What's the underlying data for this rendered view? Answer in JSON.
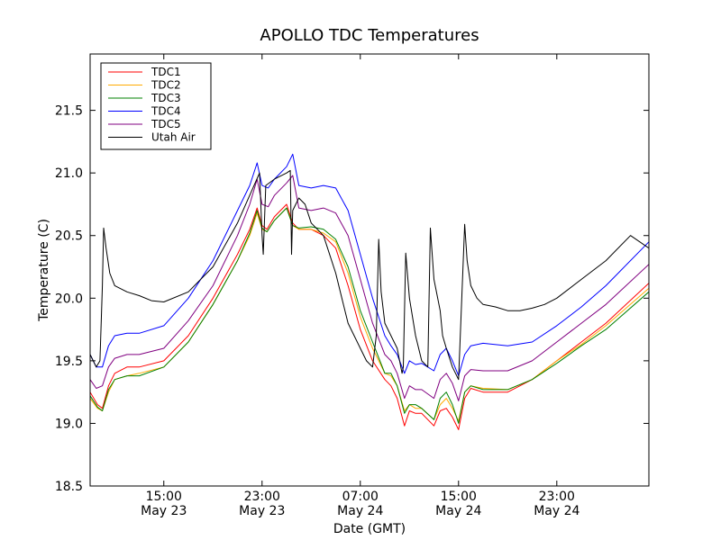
{
  "chart_data": {
    "type": "line",
    "title": "APOLLO TDC Temperatures",
    "xlabel": "Date (GMT)",
    "ylabel": "Temperature (C)",
    "x_unit": "hours since May 23 09:00 GMT",
    "xlim": [
      0,
      45.5
    ],
    "ylim": [
      18.5,
      21.95
    ],
    "yticks": [
      18.5,
      19.0,
      19.5,
      20.0,
      20.5,
      21.0,
      21.5
    ],
    "ytick_labels": [
      "18.5",
      "19.0",
      "19.5",
      "20.0",
      "20.5",
      "21.0",
      "21.5"
    ],
    "xticks": [
      {
        "x": 6,
        "time": "15:00",
        "date": "May 23"
      },
      {
        "x": 14,
        "time": "23:00",
        "date": "May 23"
      },
      {
        "x": 22,
        "time": "07:00",
        "date": "May 24"
      },
      {
        "x": 30,
        "time": "15:00",
        "date": "May 24"
      },
      {
        "x": 38,
        "time": "23:00",
        "date": "May 24"
      }
    ],
    "legend_position": "top-left",
    "series": [
      {
        "name": "TDC1",
        "color": "#ff0000",
        "x": [
          0,
          0.6,
          1,
          1.5,
          2,
          3,
          4,
          6,
          8,
          10,
          12,
          13,
          13.6,
          14,
          14.4,
          15,
          16,
          16.5,
          17,
          18,
          19,
          20,
          21,
          22,
          23,
          24,
          24.5,
          25,
          25.6,
          26,
          26.5,
          27,
          28,
          28.5,
          29,
          29.5,
          30,
          30.5,
          31,
          32,
          34,
          36,
          38,
          40,
          42,
          45.5
        ],
        "values": [
          19.25,
          19.15,
          19.12,
          19.3,
          19.4,
          19.45,
          19.45,
          19.5,
          19.7,
          20.0,
          20.35,
          20.55,
          20.72,
          20.58,
          20.55,
          20.65,
          20.75,
          20.6,
          20.55,
          20.55,
          20.5,
          20.4,
          20.1,
          19.75,
          19.5,
          19.35,
          19.3,
          19.2,
          18.98,
          19.1,
          19.08,
          19.08,
          18.98,
          19.1,
          19.12,
          19.05,
          18.95,
          19.2,
          19.28,
          19.25,
          19.25,
          19.35,
          19.5,
          19.65,
          19.8,
          20.12
        ]
      },
      {
        "name": "TDC2",
        "color": "#ffaa00",
        "x": [
          0,
          0.6,
          1,
          1.5,
          2,
          3,
          4,
          6,
          8,
          10,
          12,
          13,
          13.6,
          14,
          14.4,
          15,
          16,
          16.5,
          17,
          18,
          19,
          20,
          21,
          22,
          23,
          24,
          24.5,
          25,
          25.6,
          26,
          26.5,
          27,
          28,
          28.5,
          29,
          29.5,
          30,
          30.5,
          31,
          32,
          34,
          36,
          38,
          40,
          42,
          45.5
        ],
        "values": [
          19.2,
          19.12,
          19.1,
          19.25,
          19.35,
          19.38,
          19.4,
          19.45,
          19.65,
          19.95,
          20.3,
          20.5,
          20.68,
          20.55,
          20.53,
          20.62,
          20.72,
          20.58,
          20.55,
          20.55,
          20.52,
          20.45,
          20.2,
          19.85,
          19.6,
          19.4,
          19.38,
          19.3,
          19.1,
          19.15,
          19.12,
          19.12,
          19.03,
          19.15,
          19.2,
          19.12,
          19.02,
          19.25,
          19.3,
          19.28,
          19.27,
          19.35,
          19.5,
          19.63,
          19.78,
          20.08
        ]
      },
      {
        "name": "TDC3",
        "color": "#008000",
        "x": [
          0,
          0.6,
          1,
          1.5,
          2,
          3,
          4,
          6,
          8,
          10,
          12,
          13,
          13.6,
          14,
          14.4,
          15,
          16,
          16.5,
          17,
          18,
          19,
          20,
          21,
          22,
          23,
          24,
          24.5,
          25,
          25.6,
          26,
          26.5,
          27,
          28,
          28.5,
          29,
          29.5,
          30,
          30.5,
          31,
          32,
          34,
          36,
          38,
          40,
          42,
          45.5
        ],
        "values": [
          19.22,
          19.13,
          19.1,
          19.27,
          19.35,
          19.38,
          19.38,
          19.45,
          19.65,
          19.95,
          20.3,
          20.52,
          20.7,
          20.56,
          20.53,
          20.62,
          20.72,
          20.58,
          20.56,
          20.57,
          20.55,
          20.47,
          20.25,
          19.9,
          19.65,
          19.4,
          19.4,
          19.3,
          19.08,
          19.15,
          19.15,
          19.12,
          19.03,
          19.2,
          19.25,
          19.15,
          19.0,
          19.25,
          19.3,
          19.27,
          19.27,
          19.35,
          19.48,
          19.62,
          19.75,
          20.05
        ]
      },
      {
        "name": "TDC4",
        "color": "#0000ff",
        "x": [
          0,
          0.5,
          1,
          1.5,
          2,
          3,
          4,
          6,
          8,
          10,
          12,
          13,
          13.6,
          14,
          14.5,
          15,
          16,
          16.5,
          17,
          18,
          19,
          20,
          21,
          22,
          23,
          24,
          24.5,
          25,
          25.6,
          26,
          26.5,
          27,
          28,
          28.5,
          29,
          29.5,
          30,
          30.5,
          31,
          32,
          34,
          36,
          38,
          40,
          42,
          45.5
        ],
        "values": [
          19.55,
          19.45,
          19.45,
          19.62,
          19.7,
          19.72,
          19.72,
          19.78,
          20.0,
          20.3,
          20.7,
          20.9,
          21.08,
          20.9,
          20.88,
          20.95,
          21.05,
          21.15,
          20.9,
          20.88,
          20.9,
          20.88,
          20.7,
          20.35,
          20.0,
          19.7,
          19.62,
          19.55,
          19.4,
          19.5,
          19.47,
          19.48,
          19.42,
          19.55,
          19.6,
          19.5,
          19.38,
          19.55,
          19.62,
          19.64,
          19.62,
          19.65,
          19.78,
          19.93,
          20.1,
          20.45
        ]
      },
      {
        "name": "TDC5",
        "color": "#800080",
        "x": [
          0,
          0.5,
          1,
          1.5,
          2,
          3,
          4,
          6,
          8,
          10,
          12,
          13,
          13.6,
          14,
          14.5,
          15,
          16,
          16.5,
          17,
          18,
          19,
          20,
          21,
          22,
          23,
          24,
          24.5,
          25,
          25.6,
          26,
          26.5,
          27,
          28,
          28.5,
          29,
          29.5,
          30,
          30.5,
          31,
          32,
          34,
          36,
          38,
          40,
          42,
          45.5
        ],
        "values": [
          19.35,
          19.28,
          19.3,
          19.45,
          19.52,
          19.55,
          19.55,
          19.6,
          19.82,
          20.1,
          20.5,
          20.75,
          20.95,
          20.75,
          20.73,
          20.82,
          20.92,
          20.98,
          20.72,
          20.7,
          20.72,
          20.68,
          20.5,
          20.15,
          19.8,
          19.55,
          19.5,
          19.4,
          19.2,
          19.3,
          19.27,
          19.27,
          19.2,
          19.35,
          19.4,
          19.32,
          19.18,
          19.38,
          19.43,
          19.42,
          19.42,
          19.5,
          19.65,
          19.8,
          19.95,
          20.27
        ]
      },
      {
        "name": "Utah Air",
        "color": "#000000",
        "x": [
          0,
          0.5,
          0.8,
          1.0,
          1.1,
          1.3,
          1.6,
          2,
          3,
          4,
          5,
          6,
          8,
          10,
          12,
          13.8,
          14.0,
          14.1,
          14.3,
          15,
          16,
          16.3,
          16.4,
          16.5,
          17,
          17.5,
          18,
          19,
          20,
          20.5,
          21,
          22,
          22.5,
          23,
          23.3,
          23.5,
          23.7,
          24,
          25,
          25.4,
          25.5,
          25.7,
          26,
          26.5,
          27,
          27.5,
          27.7,
          28,
          28.5,
          28.7,
          29,
          29.5,
          30,
          30.5,
          30.7,
          31,
          31.5,
          32,
          33,
          34,
          35,
          36,
          37,
          38,
          40,
          42,
          44,
          45.5
        ],
        "values": [
          19.55,
          19.45,
          19.5,
          20.1,
          20.56,
          20.4,
          20.2,
          20.1,
          20.05,
          20.02,
          19.98,
          19.97,
          20.05,
          20.25,
          20.6,
          21.0,
          20.5,
          20.35,
          20.9,
          20.95,
          21.0,
          21.02,
          20.35,
          20.7,
          20.8,
          20.75,
          20.6,
          20.5,
          20.2,
          20.0,
          19.8,
          19.6,
          19.5,
          19.45,
          19.7,
          20.47,
          20.05,
          19.8,
          19.6,
          19.4,
          19.45,
          20.36,
          20.0,
          19.7,
          19.5,
          19.45,
          20.56,
          20.15,
          19.9,
          19.7,
          19.6,
          19.45,
          19.35,
          20.59,
          20.3,
          20.1,
          20.0,
          19.95,
          19.93,
          19.9,
          19.9,
          19.92,
          19.95,
          20.0,
          20.15,
          20.3,
          20.5,
          20.4
        ]
      }
    ]
  }
}
